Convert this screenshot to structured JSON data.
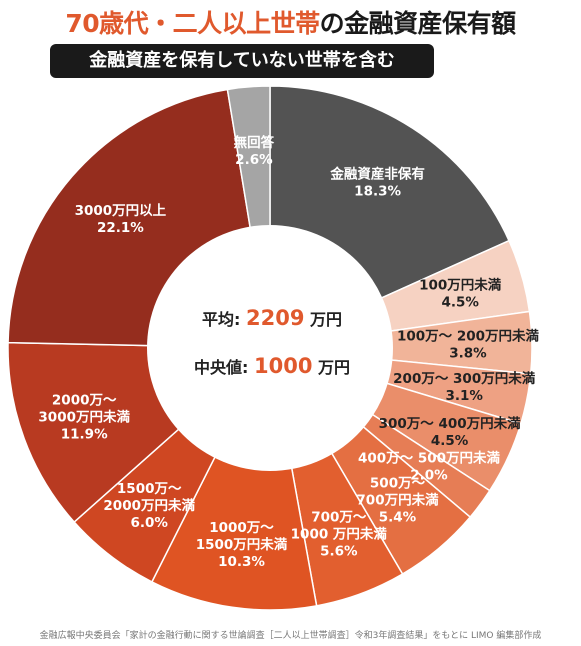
{
  "title": {
    "part1": "70歳代・二人以上世帯",
    "part2": "の金融資産保有額"
  },
  "subtitle": "金融資産を保有していない世帯を含む",
  "center": {
    "avg_label": "平均",
    "avg_sep": ":",
    "avg_value": "2209",
    "avg_unit": "万円",
    "median_label": "中央値",
    "median_sep": ":",
    "median_value": "1000",
    "median_unit": "万円"
  },
  "source": "金融広報中央委員会「家計の金融行動に関する世論調査［二人以上世帯調査］令和3年調査結果」をもとに LIMO 編集部作成",
  "chart_data": {
    "type": "pie",
    "donut": true,
    "start": "top, clockwise",
    "slices": [
      {
        "label": [
          "金融資産非保有"
        ],
        "value": 18.3,
        "display": "18.3%",
        "color": "#535353",
        "text_color": "#ffffff"
      },
      {
        "label": [
          "100万円未満"
        ],
        "value": 4.5,
        "display": "4.5%",
        "color": "#f6d2c2",
        "text_color": "#222222"
      },
      {
        "label": [
          "100万～ 200万円未満"
        ],
        "value": 3.8,
        "display": "3.8%",
        "color": "#f1b499",
        "text_color": "#222222"
      },
      {
        "label": [
          "200万～ 300万円未満"
        ],
        "value": 3.1,
        "display": "3.1%",
        "color": "#eea183",
        "text_color": "#222222"
      },
      {
        "label": [
          "300万～ 400万円未満"
        ],
        "value": 4.5,
        "display": "4.5%",
        "color": "#ea8e6a",
        "text_color": "#222222"
      },
      {
        "label": [
          "400万～ 500万円未満"
        ],
        "value": 2.0,
        "display": "2.0%",
        "color": "#e67d55",
        "text_color": "#ffffff"
      },
      {
        "label": [
          "500万～",
          "700万円未満"
        ],
        "value": 5.4,
        "display": "5.4%",
        "color": "#e46f42",
        "text_color": "#ffffff"
      },
      {
        "label": [
          "700万～",
          "1000 万円未満"
        ],
        "value": 5.6,
        "display": "5.6%",
        "color": "#e25f2f",
        "text_color": "#ffffff"
      },
      {
        "label": [
          "1000万～",
          "1500万円未満"
        ],
        "value": 10.3,
        "display": "10.3%",
        "color": "#df5423",
        "text_color": "#ffffff"
      },
      {
        "label": [
          "1500万～",
          "2000万円未満"
        ],
        "value": 6.0,
        "display": "6.0%",
        "color": "#cf4722",
        "text_color": "#ffffff"
      },
      {
        "label": [
          "2000万～",
          "3000万円未満"
        ],
        "value": 11.9,
        "display": "11.9%",
        "color": "#b83a21",
        "text_color": "#ffffff"
      },
      {
        "label": [
          "3000万円以上"
        ],
        "value": 22.1,
        "display": "22.1%",
        "color": "#952d1e",
        "text_color": "#ffffff"
      },
      {
        "label": [
          "無回答"
        ],
        "value": 2.6,
        "display": "2.6%",
        "color": "#a5a5a5",
        "text_color": "#ffffff"
      }
    ]
  }
}
